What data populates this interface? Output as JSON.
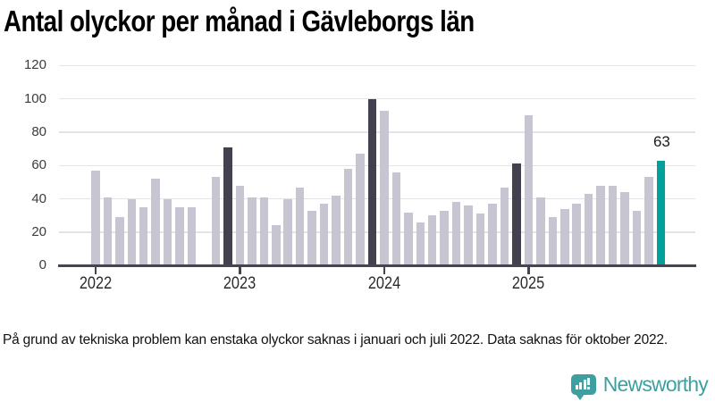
{
  "title": "Antal olyckor per månad i Gävleborgs län",
  "footnote": "På grund av tekniska problem kan enstaka olyckor saknas i januari och juli 2022. Data saknas för oktober 2022.",
  "brand": {
    "name": "Newsworthy",
    "color": "#3d9f9f"
  },
  "chart_data": {
    "type": "bar",
    "title": "Antal olyckor per månad i Gävleborgs län",
    "xlabel": "",
    "ylabel": "",
    "ylim": [
      0,
      120
    ],
    "yticks": [
      0,
      20,
      40,
      60,
      80,
      100,
      120
    ],
    "grid": "horizontal",
    "categories": [
      "2022-01",
      "2022-02",
      "2022-03",
      "2022-04",
      "2022-05",
      "2022-06",
      "2022-07",
      "2022-08",
      "2022-09",
      "2022-10",
      "2022-11",
      "2022-12",
      "2023-01",
      "2023-02",
      "2023-03",
      "2023-04",
      "2023-05",
      "2023-06",
      "2023-07",
      "2023-08",
      "2023-09",
      "2023-10",
      "2023-11",
      "2023-12",
      "2024-01",
      "2024-02",
      "2024-03",
      "2024-04",
      "2024-05",
      "2024-06",
      "2024-07",
      "2024-08",
      "2024-09",
      "2024-10",
      "2024-11",
      "2024-12",
      "2025-01",
      "2025-02",
      "2025-03",
      "2025-04",
      "2025-05",
      "2025-06",
      "2025-07",
      "2025-08",
      "2025-09",
      "2025-10",
      "2025-11",
      "2025-12"
    ],
    "values": [
      57,
      41,
      29,
      40,
      35,
      52,
      40,
      35,
      35,
      null,
      53,
      71,
      48,
      41,
      41,
      24,
      40,
      47,
      33,
      37,
      42,
      58,
      67,
      100,
      93,
      56,
      32,
      26,
      30,
      33,
      38,
      36,
      31,
      37,
      47,
      61,
      90,
      41,
      29,
      34,
      37,
      43,
      48,
      48,
      44,
      33,
      53,
      63
    ],
    "missing_categories": [
      "2022-10"
    ],
    "dark_highlight_indices": [
      11,
      23,
      35
    ],
    "accent_index": 47,
    "data_label": {
      "index": 47,
      "text": "63"
    },
    "x_tick_labels": [
      {
        "label": "2022",
        "month_index": 0
      },
      {
        "label": "2023",
        "month_index": 12
      },
      {
        "label": "2024",
        "month_index": 24
      },
      {
        "label": "2025",
        "month_index": 36
      }
    ],
    "legend": "none",
    "colors": {
      "bar": "#c8c5d2",
      "bar_dark": "#434050",
      "bar_accent": "#00a19a",
      "gridline": "#e4e3e8",
      "axis": "#46444d"
    }
  }
}
